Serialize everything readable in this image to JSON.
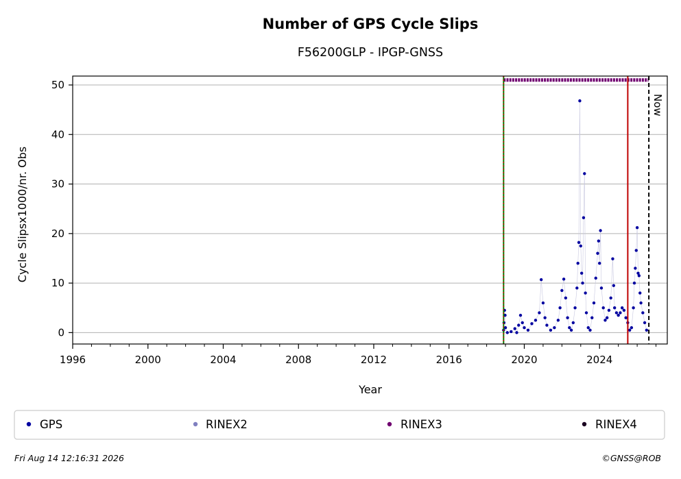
{
  "chart_data": {
    "type": "scatter",
    "title": "Number of GPS Cycle Slips",
    "subtitle": "F56200GLP - IPGP-GNSS",
    "xlabel": "Year",
    "ylabel": "Cycle Slipsx1000/nr. Obs",
    "xlim": [
      1996,
      2027.6
    ],
    "ylim": [
      -2.3,
      51.8
    ],
    "x_ticks": [
      1996,
      2000,
      2004,
      2008,
      2012,
      2016,
      2020,
      2024
    ],
    "x_tick_labels": [
      "1996",
      "2000",
      "2004",
      "2008",
      "2012",
      "2016",
      "2020",
      "2024"
    ],
    "y_ticks": [
      0,
      10,
      20,
      30,
      40,
      50
    ],
    "y_tick_labels": [
      "0",
      "10",
      "20",
      "30",
      "40",
      "50"
    ],
    "grid": "horizontal",
    "colors": {
      "gps": "#0000a0",
      "rinex2": "#8080c0",
      "rinex3": "#700070",
      "rinex4": "#1a0020",
      "green_line": "#008000",
      "red_line": "#c00000"
    },
    "vertical_lines": [
      {
        "x": 2018.9,
        "style": "solid",
        "color": "#008000"
      },
      {
        "x": 2018.9,
        "style": "dotted",
        "color": "#c00000"
      },
      {
        "x": 2025.5,
        "style": "solid",
        "color": "#c00000"
      },
      {
        "x": 2026.62,
        "style": "dashed",
        "color": "#000000",
        "label": "Now"
      }
    ],
    "rinex3_band": {
      "y": 51,
      "x_start": 2018.9,
      "x_end": 2026.6
    },
    "series": [
      {
        "name": "GPS",
        "points": [
          [
            2018.9,
            0.5
          ],
          [
            2018.92,
            2.0
          ],
          [
            2018.95,
            4.5
          ],
          [
            2018.98,
            3.5
          ],
          [
            2019.0,
            1.0
          ],
          [
            2019.1,
            0.0
          ],
          [
            2019.3,
            0.2
          ],
          [
            2019.5,
            0.8
          ],
          [
            2019.6,
            0.0
          ],
          [
            2019.7,
            1.5
          ],
          [
            2019.8,
            3.5
          ],
          [
            2019.9,
            2.0
          ],
          [
            2020.0,
            1.0
          ],
          [
            2020.2,
            0.5
          ],
          [
            2020.4,
            1.8
          ],
          [
            2020.6,
            2.5
          ],
          [
            2020.8,
            4.0
          ],
          [
            2020.9,
            10.7
          ],
          [
            2021.0,
            6.0
          ],
          [
            2021.1,
            3.0
          ],
          [
            2021.2,
            1.5
          ],
          [
            2021.4,
            0.5
          ],
          [
            2021.6,
            1.0
          ],
          [
            2021.8,
            2.5
          ],
          [
            2021.9,
            5.0
          ],
          [
            2022.0,
            8.5
          ],
          [
            2022.1,
            10.8
          ],
          [
            2022.2,
            7.0
          ],
          [
            2022.3,
            3.0
          ],
          [
            2022.4,
            1.0
          ],
          [
            2022.5,
            0.5
          ],
          [
            2022.6,
            2.0
          ],
          [
            2022.7,
            5.0
          ],
          [
            2022.8,
            9.0
          ],
          [
            2022.85,
            14.0
          ],
          [
            2022.9,
            18.2
          ],
          [
            2022.95,
            46.8
          ],
          [
            2023.0,
            17.5
          ],
          [
            2023.05,
            12.0
          ],
          [
            2023.1,
            10.0
          ],
          [
            2023.15,
            23.2
          ],
          [
            2023.2,
            32.1
          ],
          [
            2023.25,
            8.0
          ],
          [
            2023.3,
            4.0
          ],
          [
            2023.4,
            1.0
          ],
          [
            2023.5,
            0.5
          ],
          [
            2023.6,
            3.0
          ],
          [
            2023.7,
            6.0
          ],
          [
            2023.8,
            11.0
          ],
          [
            2023.9,
            16.0
          ],
          [
            2023.95,
            18.5
          ],
          [
            2024.0,
            14.0
          ],
          [
            2024.05,
            20.6
          ],
          [
            2024.1,
            9.0
          ],
          [
            2024.2,
            5.0
          ],
          [
            2024.3,
            2.5
          ],
          [
            2024.4,
            3.0
          ],
          [
            2024.5,
            4.5
          ],
          [
            2024.6,
            7.0
          ],
          [
            2024.7,
            14.9
          ],
          [
            2024.75,
            9.5
          ],
          [
            2024.8,
            5.0
          ],
          [
            2024.9,
            4.0
          ],
          [
            2025.0,
            3.5
          ],
          [
            2025.1,
            4.0
          ],
          [
            2025.2,
            5.0
          ],
          [
            2025.3,
            4.5
          ],
          [
            2025.4,
            3.0
          ],
          [
            2025.5,
            2.0
          ],
          [
            2025.6,
            0.5
          ],
          [
            2025.7,
            1.0
          ],
          [
            2025.8,
            5.0
          ],
          [
            2025.85,
            10.0
          ],
          [
            2025.9,
            13.0
          ],
          [
            2025.95,
            16.6
          ],
          [
            2026.0,
            21.2
          ],
          [
            2026.05,
            12.0
          ],
          [
            2026.1,
            11.5
          ],
          [
            2026.15,
            8.0
          ],
          [
            2026.2,
            6.0
          ],
          [
            2026.3,
            4.0
          ],
          [
            2026.4,
            2.0
          ],
          [
            2026.5,
            0.5
          ]
        ]
      }
    ],
    "legend": {
      "placement": "bottom",
      "entries": [
        {
          "label": "GPS",
          "color": "#0000a0"
        },
        {
          "label": "RINEX2",
          "color": "#8080c0"
        },
        {
          "label": "RINEX3",
          "color": "#700070"
        },
        {
          "label": "RINEX4",
          "color": "#1a0020"
        }
      ]
    },
    "now_label": "Now"
  },
  "footer": {
    "timestamp": "Fri Aug 14 12:16:31 2026",
    "copyright": "©GNSS@ROB"
  }
}
